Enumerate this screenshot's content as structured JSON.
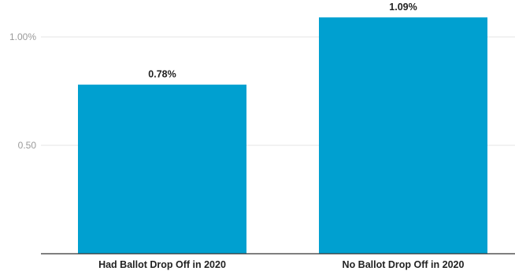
{
  "chart_data": {
    "type": "bar",
    "categories": [
      "Had Ballot Drop Off in 2020",
      "No Ballot Drop Off in 2020"
    ],
    "values": [
      0.78,
      1.09
    ],
    "data_labels": [
      "0.78%",
      "1.09%"
    ],
    "y_ticks": [
      {
        "value": 0.5,
        "label": "0.50"
      },
      {
        "value": 1.0,
        "label": "1.00%"
      }
    ],
    "ylim": [
      0,
      1.1
    ],
    "bar_color": "#00a0d0",
    "grid": true,
    "title": "",
    "xlabel": "",
    "ylabel": ""
  }
}
